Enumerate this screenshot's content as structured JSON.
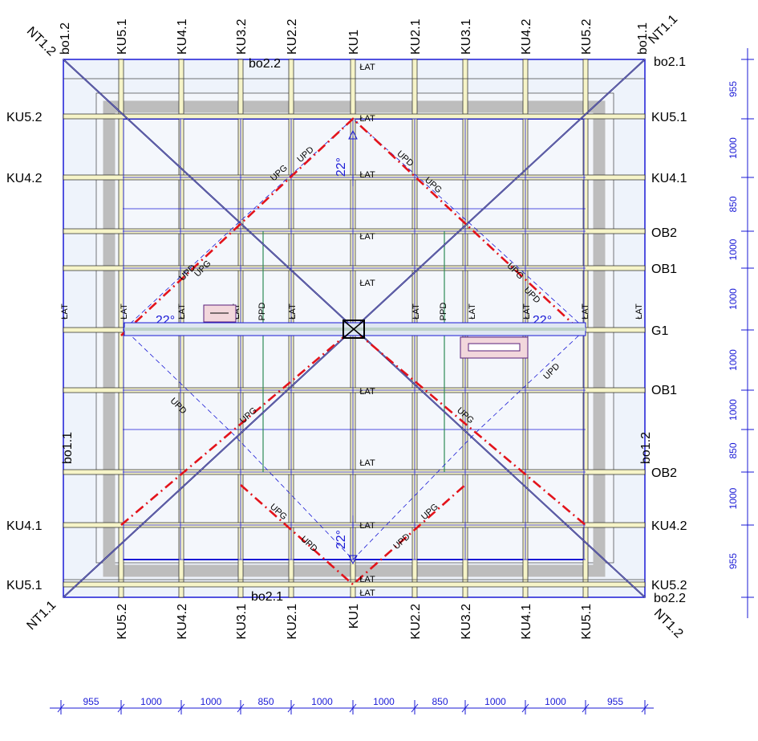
{
  "plan": {
    "top_rafter_labels": [
      "bo1.2",
      "KU5.1",
      "KU4.1",
      "KU3.2",
      "KU2.2",
      "KU1",
      "KU2.1",
      "KU3.1",
      "KU4.2",
      "KU5.2",
      "bo1.1"
    ],
    "bottom_rafter_labels": [
      "KU5.2",
      "KU4.2",
      "KU3.1",
      "KU2.1",
      "KU1",
      "KU2.2",
      "KU3.2",
      "KU4.1",
      "KU5.1"
    ],
    "left_labels": [
      "KU5.2",
      "KU4.2",
      "KU4.1",
      "KU5.1"
    ],
    "right_labels": [
      "KU5.1",
      "KU4.1",
      "OB2",
      "OB1",
      "G1",
      "OB1",
      "OB2",
      "KU4.2",
      "KU5.2"
    ],
    "side_bo_left": "bo1.1",
    "side_bo_right": "bo1.2",
    "corner_labels": {
      "top_left": "NT1.2",
      "top_right": "NT1.1",
      "bottom_left": "NT1.1",
      "bottom_right": "NT1.2"
    },
    "eave_labels": {
      "top_center": "bo2.2",
      "top_right": "bo2.1",
      "bottom_center": "bo2.1",
      "bottom_right": "bo2.2"
    },
    "lat_label": "ŁAT",
    "ppd_label": "PPD",
    "upg_label": "UPG",
    "upd_label": "UPD",
    "angle_label": "22°",
    "bottom_dims": [
      "955",
      "1000",
      "1000",
      "850",
      "1000",
      "1000",
      "850",
      "1000",
      "1000",
      "955"
    ],
    "right_dims": [
      "955",
      "1000",
      "850",
      "1000",
      "1000",
      "1000",
      "1000",
      "850",
      "1000",
      "955"
    ]
  },
  "colors": {
    "frame": "#1a1ad6",
    "rafter": "#f6f4c8",
    "red": "#e3131b",
    "glass": "#e8f0fb",
    "gray": "#c8c8c8",
    "green": "#2e8b57"
  }
}
